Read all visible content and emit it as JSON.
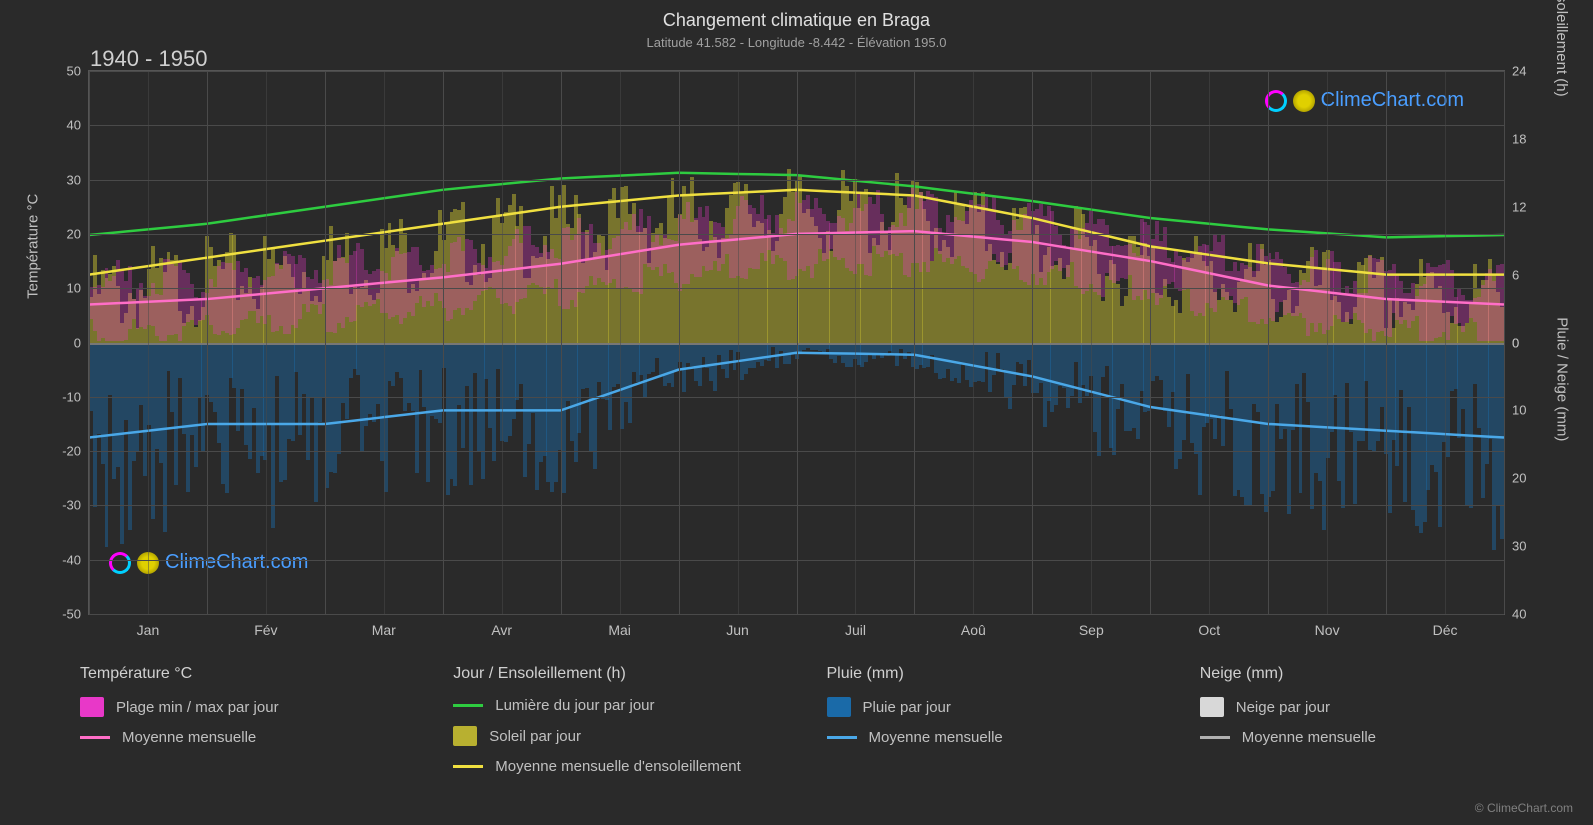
{
  "title": "Changement climatique en Braga",
  "subtitle": "Latitude 41.582 - Longitude -8.442 - Élévation 195.0",
  "period": "1940 - 1950",
  "y_left_title": "Température °C",
  "y_right_top_title": "Jour / Ensoleillement (h)",
  "y_right_bottom_title": "Pluie / Neige (mm)",
  "y_left_ticks": [
    50,
    40,
    30,
    20,
    10,
    0,
    -10,
    -20,
    -30,
    -40,
    -50
  ],
  "y_right_top_ticks": [
    24,
    18,
    12,
    6,
    0
  ],
  "y_right_bottom_ticks": [
    0,
    10,
    20,
    30,
    40
  ],
  "x_labels": [
    "Jan",
    "Fév",
    "Mar",
    "Avr",
    "Mai",
    "Jun",
    "Juil",
    "Aoû",
    "Sep",
    "Oct",
    "Nov",
    "Déc"
  ],
  "colors": {
    "background": "#2a2a2a",
    "grid": "#4a4a4a",
    "temp_range": "#e838c8",
    "temp_avg": "#ff6ec7",
    "daylight": "#2ecc40",
    "sunshine_bar": "#b8b030",
    "sunshine_avg": "#f0e040",
    "rain_bar": "#1a6aa8",
    "rain_avg": "#4aa8e8",
    "snow_bar": "#d8d8d8",
    "snow_avg": "#b0b0b0",
    "text": "#c0c0c0",
    "watermark": "#4a9eff"
  },
  "series": {
    "daylight_monthly": [
      9.5,
      10.5,
      12.0,
      13.5,
      14.5,
      15.0,
      14.8,
      13.8,
      12.5,
      11.0,
      10.0,
      9.3
    ],
    "sunshine_avg_monthly": [
      6.0,
      7.5,
      9.0,
      10.5,
      12.0,
      13.0,
      13.5,
      13.0,
      11.0,
      8.5,
      7.0,
      6.0
    ],
    "temp_avg_monthly": [
      7.0,
      8.0,
      10.0,
      12.0,
      14.5,
      18.0,
      20.0,
      20.5,
      18.5,
      15.0,
      10.5,
      8.0
    ],
    "rain_avg_monthly": [
      14.0,
      12.0,
      12.0,
      10.0,
      10.0,
      4.0,
      1.5,
      1.8,
      5.0,
      9.5,
      12.0,
      13.0
    ]
  },
  "legend": {
    "col1_heading": "Température °C",
    "col1_item1": "Plage min / max par jour",
    "col1_item2": "Moyenne mensuelle",
    "col2_heading": "Jour / Ensoleillement (h)",
    "col2_item1": "Lumière du jour par jour",
    "col2_item2": "Soleil par jour",
    "col2_item3": "Moyenne mensuelle d'ensoleillement",
    "col3_heading": "Pluie (mm)",
    "col3_item1": "Pluie par jour",
    "col3_item2": "Moyenne mensuelle",
    "col4_heading": "Neige (mm)",
    "col4_item1": "Neige par jour",
    "col4_item2": "Moyenne mensuelle"
  },
  "watermark_text": "ClimeChart.com",
  "copyright": "© ClimeChart.com"
}
